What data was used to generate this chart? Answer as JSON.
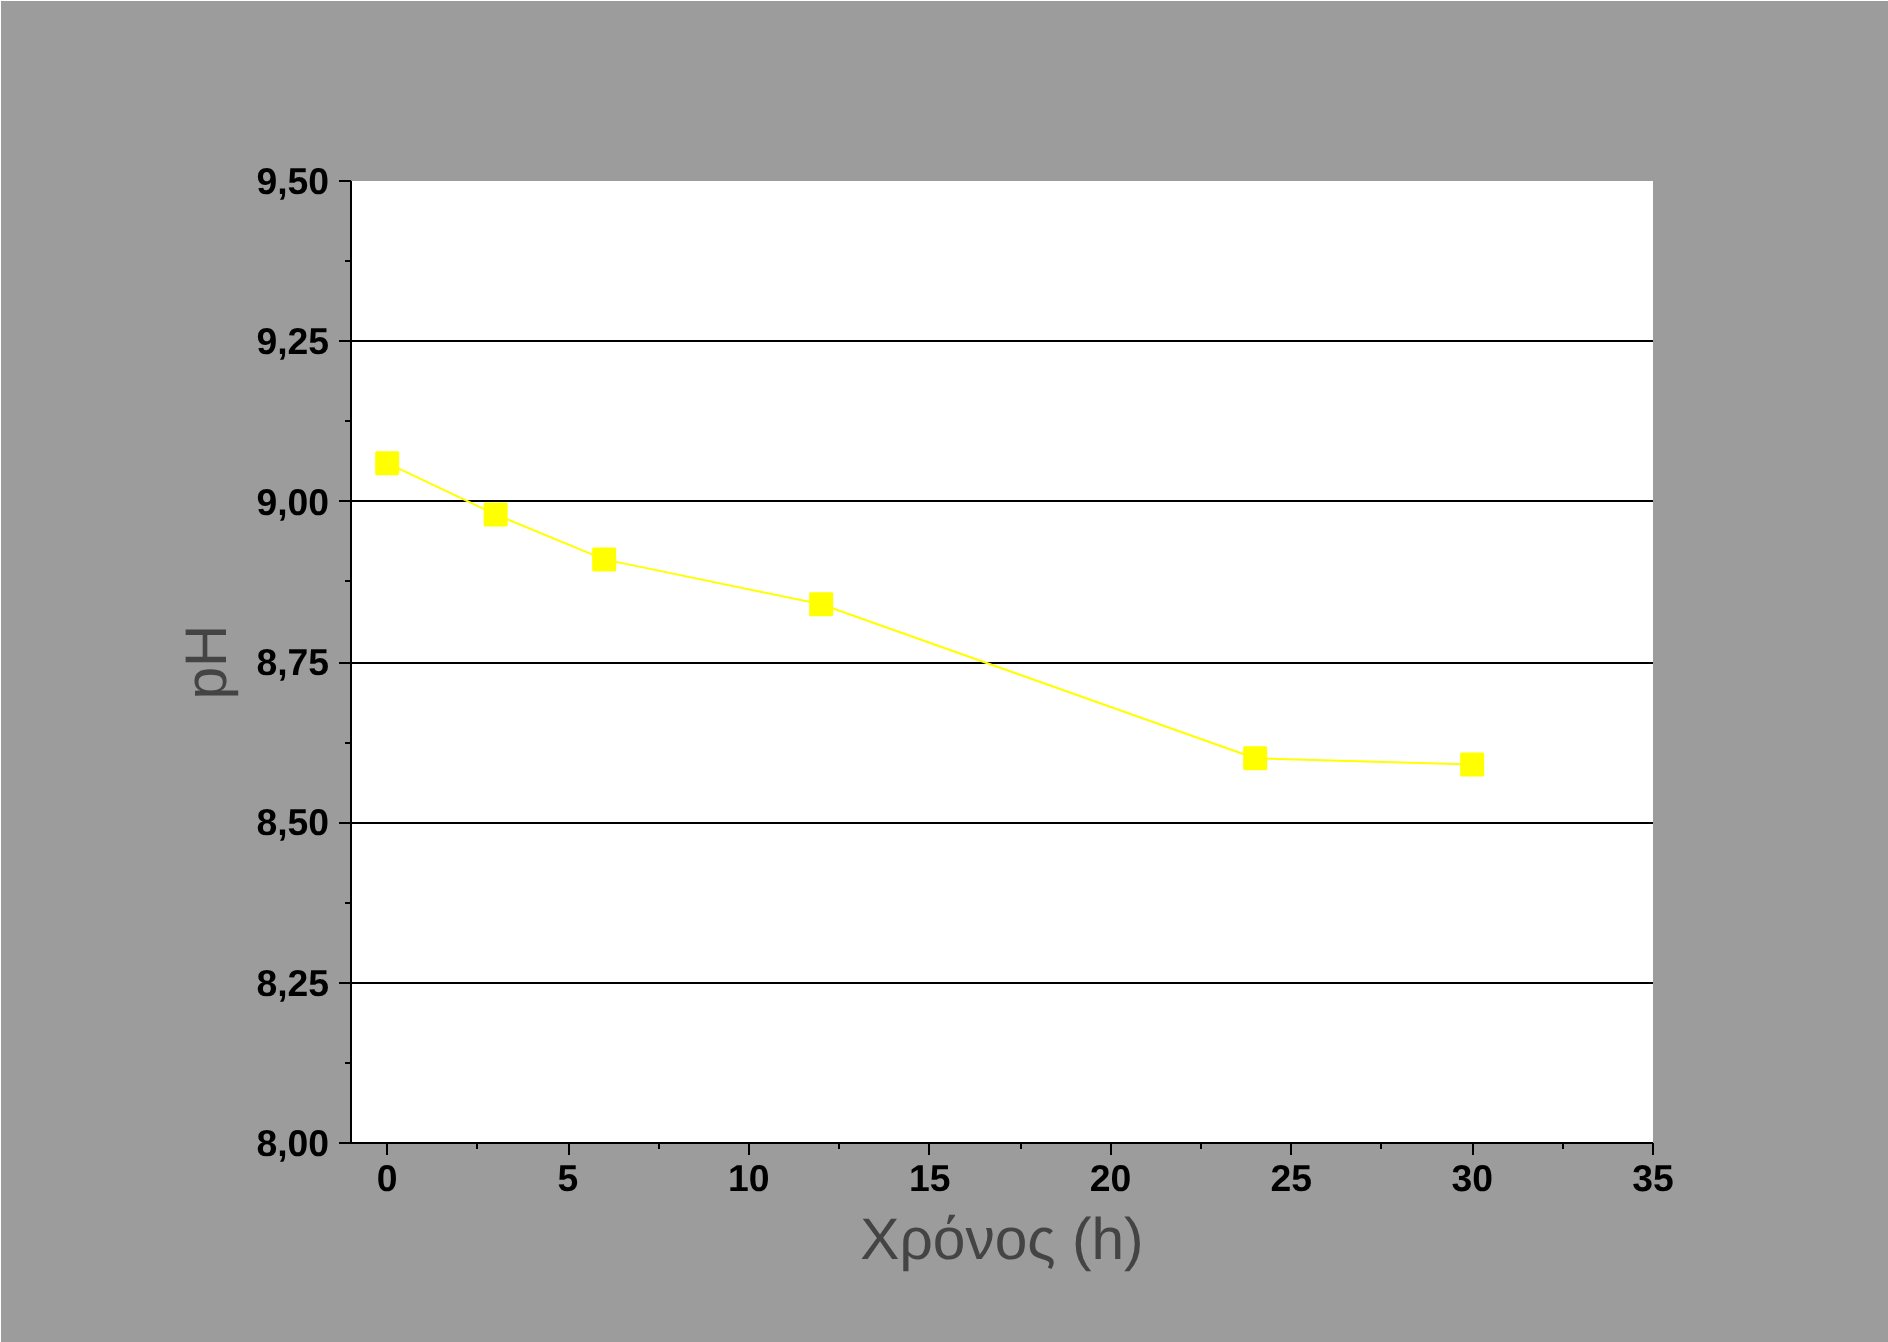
{
  "chart_data": {
    "type": "line",
    "xlabel": "Χρόνος (h)",
    "ylabel": "pH",
    "x": [
      0,
      3,
      6,
      12,
      24,
      30
    ],
    "series": [
      {
        "color": "#ffff00",
        "values": [
          9.06,
          8.98,
          8.91,
          8.84,
          8.6,
          8.59
        ]
      }
    ],
    "xlim": [
      -1,
      35
    ],
    "xticks": [
      0,
      5,
      10,
      15,
      20,
      25,
      30,
      35
    ],
    "ylim": [
      8.0,
      9.5
    ],
    "yticks": [
      {
        "value": 8.0,
        "label": "8,00"
      },
      {
        "value": 8.25,
        "label": "8,25"
      },
      {
        "value": 8.5,
        "label": "8,50"
      },
      {
        "value": 8.75,
        "label": "8,75"
      },
      {
        "value": 9.0,
        "label": "9,00"
      },
      {
        "value": 9.25,
        "label": "9,25"
      },
      {
        "value": 9.5,
        "label": "9,50"
      }
    ],
    "grid": "y",
    "marker": "square",
    "line_style": "solid"
  }
}
